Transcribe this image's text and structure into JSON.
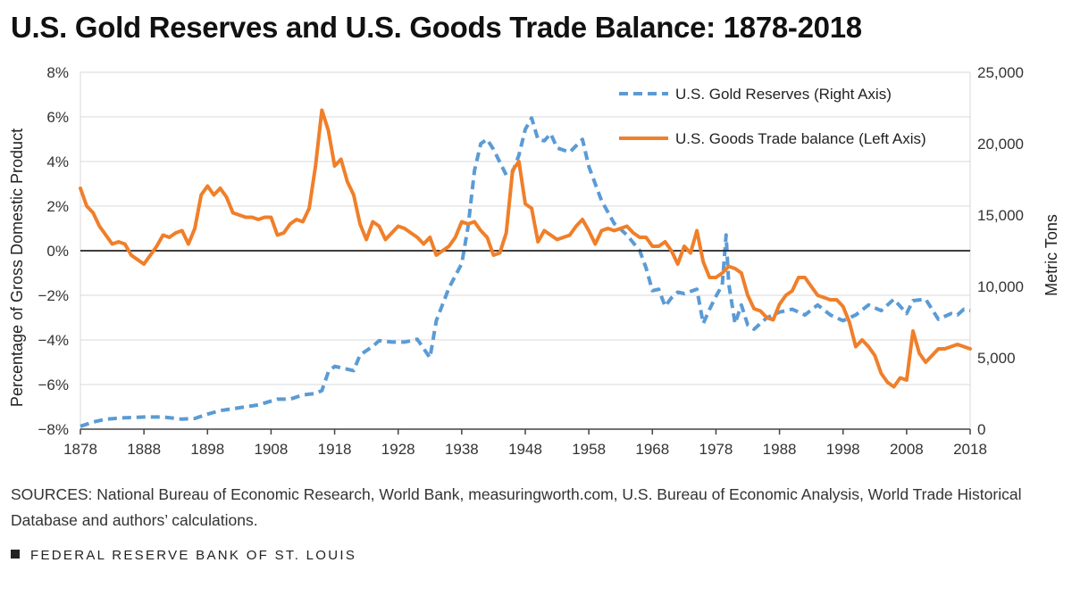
{
  "title": "U.S. Gold Reserves and U.S. Goods Trade Balance: 1878-2018",
  "sources": "SOURCES: National Bureau of Economic Research, World Bank, measuringworth.com, U.S. Bureau of Economic Analysis, World Trade Historical Database and authors’ calculations.",
  "footer": "FEDERAL RESERVE BANK OF ST. LOUIS",
  "colors": {
    "gold": "#5b9bd5",
    "trade": "#f07f2a",
    "grid": "#d9d9d9",
    "zero": "#222222"
  },
  "chart_data": {
    "type": "line",
    "title": "U.S. Gold Reserves and U.S. Goods Trade Balance: 1878-2018",
    "xlabel": "",
    "ylabel_left": "Percentage of Gross Domestic Product",
    "ylabel_right": "Metric Tons",
    "xlim": [
      1878,
      2018
    ],
    "ylim_left": [
      -8,
      8
    ],
    "ylim_right": [
      0,
      25000
    ],
    "x_ticks": [
      "1878",
      "1888",
      "1898",
      "1908",
      "1918",
      "1928",
      "1938",
      "1948",
      "1958",
      "1968",
      "1978",
      "1988",
      "1998",
      "2008",
      "2018"
    ],
    "y_left_ticks": [
      "8%",
      "6%",
      "4%",
      "2%",
      "0%",
      "−2%",
      "−4%",
      "−6%",
      "−8%"
    ],
    "y_right_ticks": [
      "25,000",
      "20,000",
      "15,000",
      "10,000",
      "5,000",
      "0"
    ],
    "grid": true,
    "legend_position": "top-right",
    "series": [
      {
        "name": "U.S. Gold Reserves (Right Axis)",
        "axis": "right",
        "style": "dashed",
        "points": [
          [
            1878,
            200
          ],
          [
            1880,
            500
          ],
          [
            1882,
            700
          ],
          [
            1885,
            800
          ],
          [
            1888,
            850
          ],
          [
            1891,
            850
          ],
          [
            1894,
            700
          ],
          [
            1896,
            750
          ],
          [
            1898,
            1050
          ],
          [
            1900,
            1300
          ],
          [
            1903,
            1500
          ],
          [
            1906,
            1700
          ],
          [
            1909,
            2100
          ],
          [
            1911,
            2100
          ],
          [
            1913,
            2400
          ],
          [
            1915,
            2500
          ],
          [
            1916,
            2700
          ],
          [
            1917,
            4000
          ],
          [
            1918,
            4400
          ],
          [
            1920,
            4200
          ],
          [
            1921,
            4100
          ],
          [
            1922,
            5200
          ],
          [
            1924,
            5800
          ],
          [
            1925,
            6200
          ],
          [
            1927,
            6100
          ],
          [
            1929,
            6100
          ],
          [
            1931,
            6300
          ],
          [
            1933,
            5000
          ],
          [
            1934,
            7600
          ],
          [
            1936,
            9900
          ],
          [
            1938,
            11600
          ],
          [
            1939,
            14200
          ],
          [
            1940,
            18100
          ],
          [
            1941,
            20000
          ],
          [
            1942,
            20300
          ],
          [
            1943,
            19600
          ],
          [
            1945,
            17800
          ],
          [
            1946,
            18000
          ],
          [
            1947,
            19200
          ],
          [
            1948,
            21000
          ],
          [
            1949,
            21800
          ],
          [
            1950,
            20300
          ],
          [
            1951,
            20200
          ],
          [
            1952,
            20700
          ],
          [
            1953,
            19700
          ],
          [
            1955,
            19400
          ],
          [
            1957,
            20300
          ],
          [
            1958,
            18400
          ],
          [
            1960,
            16000
          ],
          [
            1962,
            14400
          ],
          [
            1964,
            13600
          ],
          [
            1966,
            12500
          ],
          [
            1967,
            11300
          ],
          [
            1968,
            9700
          ],
          [
            1969,
            9800
          ],
          [
            1970,
            8600
          ],
          [
            1971,
            9200
          ],
          [
            1972,
            9600
          ],
          [
            1973,
            9500
          ],
          [
            1975,
            9800
          ],
          [
            1976,
            7400
          ],
          [
            1977,
            8400
          ],
          [
            1978,
            9300
          ],
          [
            1979,
            10100
          ],
          [
            1979.6,
            13600
          ],
          [
            1980,
            10200
          ],
          [
            1981,
            7400
          ],
          [
            1982,
            8700
          ],
          [
            1983,
            7300
          ],
          [
            1984,
            7000
          ],
          [
            1986,
            7800
          ],
          [
            1988,
            8200
          ],
          [
            1990,
            8400
          ],
          [
            1992,
            8000
          ],
          [
            1994,
            8700
          ],
          [
            1996,
            8000
          ],
          [
            1998,
            7600
          ],
          [
            2000,
            8000
          ],
          [
            2002,
            8700
          ],
          [
            2004,
            8300
          ],
          [
            2006,
            9100
          ],
          [
            2008,
            8100
          ],
          [
            2009,
            9000
          ],
          [
            2011,
            9100
          ],
          [
            2013,
            7700
          ],
          [
            2015,
            8100
          ],
          [
            2016,
            8000
          ],
          [
            2017,
            8400
          ],
          [
            2018,
            8300
          ]
        ]
      },
      {
        "name": "U.S. Goods Trade balance (Left Axis)",
        "axis": "left",
        "style": "solid",
        "points": [
          [
            1878,
            2.8
          ],
          [
            1879,
            2.0
          ],
          [
            1880,
            1.7
          ],
          [
            1881,
            1.1
          ],
          [
            1882,
            0.7
          ],
          [
            1883,
            0.3
          ],
          [
            1884,
            0.4
          ],
          [
            1885,
            0.3
          ],
          [
            1886,
            -0.2
          ],
          [
            1887,
            -0.4
          ],
          [
            1888,
            -0.6
          ],
          [
            1889,
            -0.2
          ],
          [
            1890,
            0.2
          ],
          [
            1891,
            0.7
          ],
          [
            1892,
            0.6
          ],
          [
            1893,
            0.8
          ],
          [
            1894,
            0.9
          ],
          [
            1895,
            0.3
          ],
          [
            1896,
            1.0
          ],
          [
            1897,
            2.5
          ],
          [
            1898,
            2.9
          ],
          [
            1899,
            2.5
          ],
          [
            1900,
            2.8
          ],
          [
            1901,
            2.4
          ],
          [
            1902,
            1.7
          ],
          [
            1903,
            1.6
          ],
          [
            1904,
            1.5
          ],
          [
            1905,
            1.5
          ],
          [
            1906,
            1.4
          ],
          [
            1907,
            1.5
          ],
          [
            1908,
            1.5
          ],
          [
            1909,
            0.7
          ],
          [
            1910,
            0.8
          ],
          [
            1911,
            1.2
          ],
          [
            1912,
            1.4
          ],
          [
            1913,
            1.3
          ],
          [
            1914,
            1.9
          ],
          [
            1915,
            3.8
          ],
          [
            1916,
            6.3
          ],
          [
            1917,
            5.4
          ],
          [
            1918,
            3.8
          ],
          [
            1919,
            4.1
          ],
          [
            1920,
            3.1
          ],
          [
            1921,
            2.5
          ],
          [
            1922,
            1.2
          ],
          [
            1923,
            0.5
          ],
          [
            1924,
            1.3
          ],
          [
            1925,
            1.1
          ],
          [
            1926,
            0.5
          ],
          [
            1927,
            0.8
          ],
          [
            1928,
            1.1
          ],
          [
            1929,
            1.0
          ],
          [
            1930,
            0.8
          ],
          [
            1931,
            0.6
          ],
          [
            1932,
            0.3
          ],
          [
            1933,
            0.6
          ],
          [
            1934,
            -0.2
          ],
          [
            1935,
            0.0
          ],
          [
            1936,
            0.2
          ],
          [
            1937,
            0.6
          ],
          [
            1938,
            1.3
          ],
          [
            1939,
            1.2
          ],
          [
            1940,
            1.3
          ],
          [
            1941,
            0.9
          ],
          [
            1942,
            0.6
          ],
          [
            1943,
            -0.2
          ],
          [
            1944,
            -0.1
          ],
          [
            1945,
            0.8
          ],
          [
            1946,
            3.6
          ],
          [
            1947,
            4.0
          ],
          [
            1948,
            2.1
          ],
          [
            1949,
            1.9
          ],
          [
            1950,
            0.4
          ],
          [
            1951,
            0.9
          ],
          [
            1952,
            0.7
          ],
          [
            1953,
            0.5
          ],
          [
            1954,
            0.6
          ],
          [
            1955,
            0.7
          ],
          [
            1956,
            1.1
          ],
          [
            1957,
            1.4
          ],
          [
            1958,
            0.9
          ],
          [
            1959,
            0.3
          ],
          [
            1960,
            0.9
          ],
          [
            1961,
            1.0
          ],
          [
            1962,
            0.9
          ],
          [
            1963,
            1.0
          ],
          [
            1964,
            1.1
          ],
          [
            1965,
            0.8
          ],
          [
            1966,
            0.6
          ],
          [
            1967,
            0.6
          ],
          [
            1968,
            0.2
          ],
          [
            1969,
            0.2
          ],
          [
            1970,
            0.4
          ],
          [
            1971,
            0.0
          ],
          [
            1972,
            -0.6
          ],
          [
            1973,
            0.2
          ],
          [
            1974,
            -0.1
          ],
          [
            1975,
            0.9
          ],
          [
            1976,
            -0.5
          ],
          [
            1977,
            -1.2
          ],
          [
            1978,
            -1.2
          ],
          [
            1979,
            -1.0
          ],
          [
            1980,
            -0.7
          ],
          [
            1981,
            -0.8
          ],
          [
            1982,
            -1.0
          ],
          [
            1983,
            -2.0
          ],
          [
            1984,
            -2.6
          ],
          [
            1985,
            -2.7
          ],
          [
            1986,
            -3.0
          ],
          [
            1987,
            -3.1
          ],
          [
            1988,
            -2.4
          ],
          [
            1989,
            -2.0
          ],
          [
            1990,
            -1.8
          ],
          [
            1991,
            -1.2
          ],
          [
            1992,
            -1.2
          ],
          [
            1993,
            -1.6
          ],
          [
            1994,
            -2.0
          ],
          [
            1995,
            -2.1
          ],
          [
            1996,
            -2.2
          ],
          [
            1997,
            -2.2
          ],
          [
            1998,
            -2.5
          ],
          [
            1999,
            -3.2
          ],
          [
            2000,
            -4.3
          ],
          [
            2001,
            -4.0
          ],
          [
            2002,
            -4.3
          ],
          [
            2003,
            -4.7
          ],
          [
            2004,
            -5.5
          ],
          [
            2005,
            -5.9
          ],
          [
            2006,
            -6.1
          ],
          [
            2007,
            -5.7
          ],
          [
            2008,
            -5.8
          ],
          [
            2009,
            -3.6
          ],
          [
            2010,
            -4.6
          ],
          [
            2011,
            -5.0
          ],
          [
            2012,
            -4.7
          ],
          [
            2013,
            -4.4
          ],
          [
            2014,
            -4.4
          ],
          [
            2015,
            -4.3
          ],
          [
            2016,
            -4.2
          ],
          [
            2017,
            -4.3
          ],
          [
            2018,
            -4.4
          ]
        ]
      }
    ]
  }
}
